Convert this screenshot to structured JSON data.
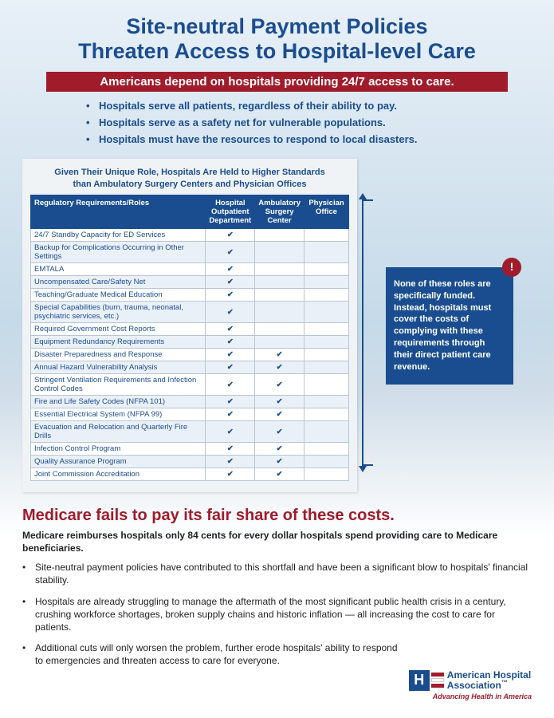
{
  "title_line1": "Site-neutral Payment Policies",
  "title_line2": "Threaten Access to Hospital-level Care",
  "banner": "Americans depend on hospitals providing 24/7 access to care.",
  "intro_bullets": [
    "Hospitals serve all patients, regardless of their ability to pay.",
    "Hospitals serve as a safety net for vulnerable populations.",
    "Hospitals must have the resources to respond to local disasters."
  ],
  "table_caption_line1": "Given Their Unique Role, Hospitals Are Held to Higher Standards",
  "table_caption_line2": "than Ambulatory Surgery Centers and Physician Offices",
  "columns": [
    "Regulatory Requirements/Roles",
    "Hospital Outpatient Department",
    "Ambulatory Surgery Center",
    "Physician Office"
  ],
  "rows": [
    {
      "label": "24/7 Standby Capacity for ED Services",
      "h": true,
      "a": false,
      "p": false
    },
    {
      "label": "Backup for Complications Occurring in Other Settings",
      "h": true,
      "a": false,
      "p": false
    },
    {
      "label": "EMTALA",
      "h": true,
      "a": false,
      "p": false
    },
    {
      "label": "Uncompensated Care/Safety Net",
      "h": true,
      "a": false,
      "p": false
    },
    {
      "label": "Teaching/Graduate Medical Education",
      "h": true,
      "a": false,
      "p": false
    },
    {
      "label": "Special Capabilities (burn, trauma, neonatal, psychiatric services, etc.)",
      "h": true,
      "a": false,
      "p": false
    },
    {
      "label": "Required Government Cost Reports",
      "h": true,
      "a": false,
      "p": false
    },
    {
      "label": "Equipment Redundancy Requirements",
      "h": true,
      "a": false,
      "p": false
    },
    {
      "label": "Disaster Preparedness and Response",
      "h": true,
      "a": true,
      "p": false
    },
    {
      "label": "Annual Hazard Vulnerability Analysis",
      "h": true,
      "a": true,
      "p": false
    },
    {
      "label": "Stringent Ventilation Requirements and Infection Control Codes",
      "h": true,
      "a": true,
      "p": false
    },
    {
      "label": "Fire and Life Safety Codes (NFPA 101)",
      "h": true,
      "a": true,
      "p": false
    },
    {
      "label": "Essential Electrical System (NFPA 99)",
      "h": true,
      "a": true,
      "p": false
    },
    {
      "label": "Evacuation and Relocation and Quarterly Fire Drills",
      "h": true,
      "a": true,
      "p": false
    },
    {
      "label": "Infection Control Program",
      "h": true,
      "a": true,
      "p": false
    },
    {
      "label": "Quality Assurance Program",
      "h": true,
      "a": true,
      "p": false
    },
    {
      "label": "Joint Commission Accreditation",
      "h": true,
      "a": true,
      "p": false
    }
  ],
  "check": "✔",
  "callout": "None of these roles are specifically funded. Instead, hospitals must cover the costs of complying with these requirements through their direct patient care revenue.",
  "callout_bang": "!",
  "section_head": "Medicare fails to pay its fair share of these costs.",
  "section_sub": "Medicare reimburses hospitals only 84 cents for every dollar hospitals spend providing care to Medicare beneficiaries.",
  "body_bullets": [
    "Site-neutral payment policies have contributed to this shortfall and have been a significant blow to hospitals' financial stability.",
    "Hospitals are already struggling to manage the aftermath of the most significant public health crisis in a century, crushing workforce shortages, broken supply chains and historic inflation — all increasing the cost to care for patients.",
    "Additional cuts will only worsen the problem, further erode hospitals' ability to respond to emergencies and threaten access to care for everyone."
  ],
  "logo": {
    "mark": "H",
    "name_line1": "American Hospital",
    "name_line2": "Association",
    "tm": "™",
    "tag": "Advancing Health in America"
  },
  "colors": {
    "navy": "#1a4d8f",
    "red": "#a01c2b",
    "card_bg": "#f0f3f5",
    "row_alt": "#eaf0f7",
    "cell_border": "#b8c5d6"
  }
}
